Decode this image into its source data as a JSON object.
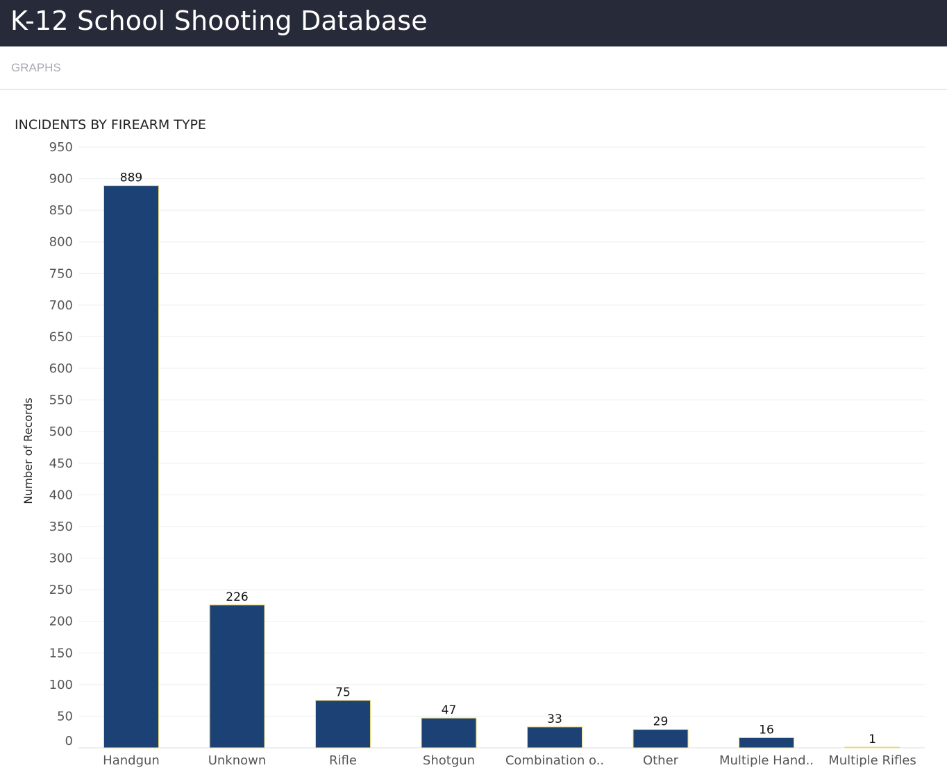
{
  "header": {
    "title": "K-12 School Shooting Database"
  },
  "nav": {
    "tab": "GRAPHS"
  },
  "chart_data": {
    "type": "bar",
    "title": "INCIDENTS BY FIREARM TYPE",
    "xlabel": "",
    "ylabel": "Number of Records",
    "ylim": [
      0,
      950
    ],
    "yticks": [
      0,
      50,
      100,
      150,
      200,
      250,
      300,
      350,
      400,
      450,
      500,
      550,
      600,
      650,
      700,
      750,
      800,
      850,
      900,
      950
    ],
    "categories": [
      "Handgun",
      "Unknown",
      "Rifle",
      "Shotgun",
      "Combination o..",
      "Other",
      "Multiple Hand..",
      "Multiple Rifles"
    ],
    "values": [
      889,
      226,
      75,
      47,
      33,
      29,
      16,
      1
    ],
    "show_value_labels": true,
    "grid": true,
    "legend": "none",
    "colors": {
      "bar_fill": "#1c4275",
      "bar_stroke": "#e8d87a",
      "grid": "#eeeeee"
    }
  }
}
